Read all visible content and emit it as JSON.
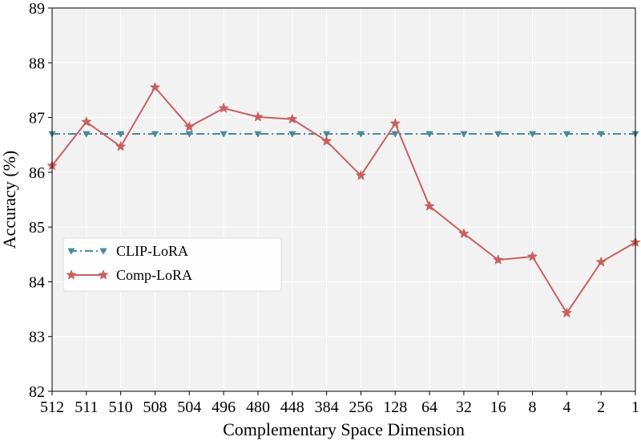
{
  "chart_data": {
    "type": "line",
    "title": "",
    "xlabel": "Complementary Space Dimension",
    "ylabel": "Accuracy (%)",
    "categories": [
      "512",
      "511",
      "510",
      "508",
      "504",
      "496",
      "480",
      "448",
      "384",
      "256",
      "128",
      "64",
      "32",
      "16",
      "8",
      "4",
      "2",
      "1"
    ],
    "ylim": [
      82,
      89
    ],
    "yticks": [
      "82",
      "83",
      "84",
      "85",
      "86",
      "87",
      "88",
      "89"
    ],
    "grid": true,
    "legend": {
      "position": "center-left"
    },
    "series": [
      {
        "name": "CLIP-LoRA",
        "color": "#4a8a9a",
        "marker": "triangle-down",
        "linestyle": "dash-dot",
        "values": [
          86.7,
          86.7,
          86.7,
          86.7,
          86.7,
          86.7,
          86.7,
          86.7,
          86.7,
          86.7,
          86.7,
          86.7,
          86.7,
          86.7,
          86.7,
          86.7,
          86.7,
          86.7
        ]
      },
      {
        "name": "Comp-LoRA",
        "color": "#c8605f",
        "marker": "star",
        "linestyle": "solid",
        "values": [
          86.12,
          86.92,
          86.47,
          87.55,
          86.83,
          87.17,
          87.01,
          86.97,
          86.57,
          85.94,
          86.89,
          85.38,
          84.88,
          84.4,
          84.46,
          83.43,
          84.36,
          84.72
        ]
      }
    ]
  }
}
